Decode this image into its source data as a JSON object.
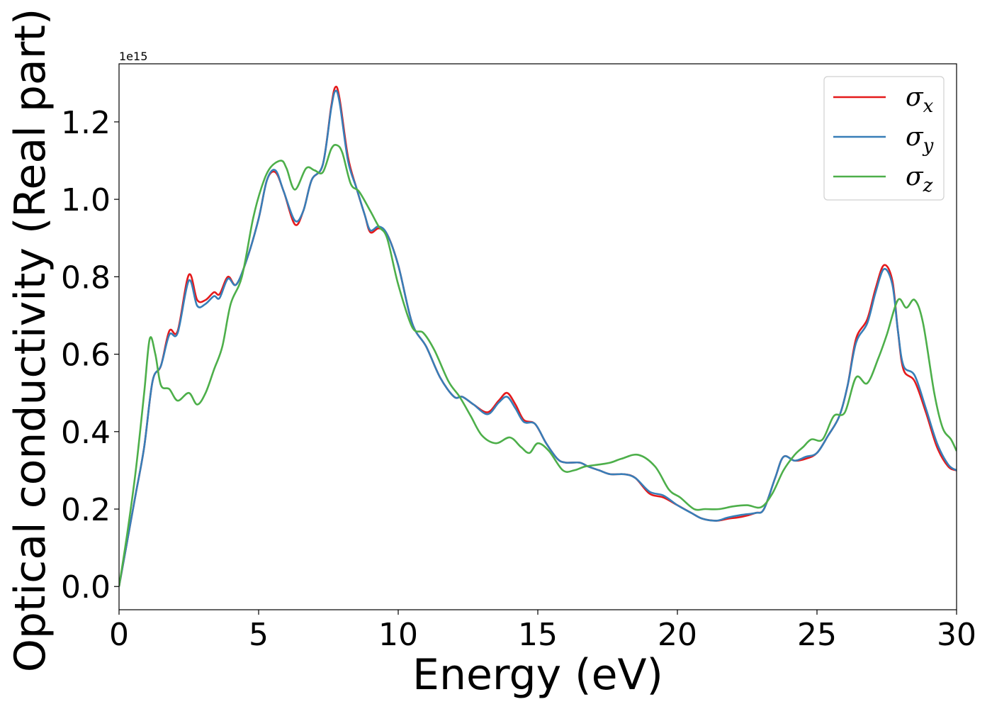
{
  "chart_data": {
    "type": "line",
    "xlabel": "Energy (eV)",
    "ylabel": "Optical conductivity (Real part)",
    "y_offset_label": "1e15",
    "xlim": [
      0,
      30
    ],
    "ylim": [
      -0.06,
      1.35
    ],
    "x_ticks": [
      0,
      5,
      10,
      15,
      20,
      25,
      30
    ],
    "x_tick_labels": [
      "0",
      "5",
      "10",
      "15",
      "20",
      "25",
      "30"
    ],
    "y_ticks": [
      0.0,
      0.2,
      0.4,
      0.6,
      0.8,
      1.0,
      1.2
    ],
    "y_tick_labels": [
      "0.0",
      "0.2",
      "0.4",
      "0.6",
      "0.8",
      "1.0",
      "1.2"
    ],
    "grid": false,
    "legend_position": "top-right",
    "series": [
      {
        "name": "σ",
        "subscript": "x",
        "color": "#e41a1c",
        "points": [
          [
            0,
            0
          ],
          [
            0.3,
            0.12
          ],
          [
            0.6,
            0.24
          ],
          [
            0.9,
            0.36
          ],
          [
            1.2,
            0.53
          ],
          [
            1.5,
            0.57
          ],
          [
            1.8,
            0.66
          ],
          [
            2.1,
            0.66
          ],
          [
            2.5,
            0.805
          ],
          [
            2.8,
            0.74
          ],
          [
            3.1,
            0.74
          ],
          [
            3.4,
            0.76
          ],
          [
            3.6,
            0.755
          ],
          [
            3.9,
            0.8
          ],
          [
            4.2,
            0.78
          ],
          [
            4.6,
            0.85
          ],
          [
            5.0,
            0.95
          ],
          [
            5.3,
            1.05
          ],
          [
            5.6,
            1.07
          ],
          [
            5.9,
            1.02
          ],
          [
            6.3,
            0.935
          ],
          [
            6.6,
            0.97
          ],
          [
            6.9,
            1.05
          ],
          [
            7.3,
            1.09
          ],
          [
            7.6,
            1.24
          ],
          [
            7.75,
            1.29
          ],
          [
            7.9,
            1.26
          ],
          [
            8.2,
            1.11
          ],
          [
            8.5,
            1.03
          ],
          [
            8.8,
            0.96
          ],
          [
            9.0,
            0.915
          ],
          [
            9.3,
            0.925
          ],
          [
            9.6,
            0.91
          ],
          [
            10.0,
            0.83
          ],
          [
            10.5,
            0.68
          ],
          [
            11.0,
            0.62
          ],
          [
            11.5,
            0.54
          ],
          [
            12.0,
            0.49
          ],
          [
            12.3,
            0.49
          ],
          [
            12.7,
            0.47
          ],
          [
            13.2,
            0.45
          ],
          [
            13.6,
            0.48
          ],
          [
            13.9,
            0.5
          ],
          [
            14.2,
            0.47
          ],
          [
            14.5,
            0.43
          ],
          [
            14.9,
            0.42
          ],
          [
            15.3,
            0.37
          ],
          [
            15.7,
            0.33
          ],
          [
            16.0,
            0.32
          ],
          [
            16.5,
            0.32
          ],
          [
            16.8,
            0.31
          ],
          [
            17.2,
            0.3
          ],
          [
            17.6,
            0.29
          ],
          [
            18.1,
            0.29
          ],
          [
            18.5,
            0.28
          ],
          [
            19.0,
            0.24
          ],
          [
            19.5,
            0.23
          ],
          [
            20.0,
            0.21
          ],
          [
            20.5,
            0.19
          ],
          [
            20.9,
            0.175
          ],
          [
            21.4,
            0.17
          ],
          [
            21.8,
            0.175
          ],
          [
            22.3,
            0.18
          ],
          [
            22.8,
            0.19
          ],
          [
            23.1,
            0.2
          ],
          [
            23.5,
            0.28
          ],
          [
            23.8,
            0.335
          ],
          [
            24.2,
            0.325
          ],
          [
            24.6,
            0.33
          ],
          [
            25.0,
            0.345
          ],
          [
            25.4,
            0.39
          ],
          [
            25.8,
            0.44
          ],
          [
            26.1,
            0.52
          ],
          [
            26.4,
            0.64
          ],
          [
            26.8,
            0.69
          ],
          [
            27.1,
            0.77
          ],
          [
            27.4,
            0.83
          ],
          [
            27.7,
            0.79
          ],
          [
            27.9,
            0.66
          ],
          [
            28.1,
            0.56
          ],
          [
            28.5,
            0.53
          ],
          [
            28.9,
            0.45
          ],
          [
            29.3,
            0.36
          ],
          [
            29.7,
            0.31
          ],
          [
            30.0,
            0.3
          ]
        ]
      },
      {
        "name": "σ",
        "subscript": "y",
        "color": "#377eb8",
        "points": [
          [
            0,
            0
          ],
          [
            0.3,
            0.12
          ],
          [
            0.6,
            0.24
          ],
          [
            0.9,
            0.36
          ],
          [
            1.2,
            0.53
          ],
          [
            1.5,
            0.57
          ],
          [
            1.8,
            0.65
          ],
          [
            2.1,
            0.655
          ],
          [
            2.5,
            0.79
          ],
          [
            2.8,
            0.725
          ],
          [
            3.1,
            0.73
          ],
          [
            3.4,
            0.75
          ],
          [
            3.6,
            0.745
          ],
          [
            3.9,
            0.795
          ],
          [
            4.2,
            0.78
          ],
          [
            4.6,
            0.85
          ],
          [
            5.0,
            0.95
          ],
          [
            5.3,
            1.05
          ],
          [
            5.6,
            1.075
          ],
          [
            5.9,
            1.02
          ],
          [
            6.3,
            0.945
          ],
          [
            6.6,
            0.97
          ],
          [
            6.9,
            1.05
          ],
          [
            7.3,
            1.09
          ],
          [
            7.6,
            1.235
          ],
          [
            7.75,
            1.28
          ],
          [
            7.9,
            1.25
          ],
          [
            8.2,
            1.1
          ],
          [
            8.5,
            1.03
          ],
          [
            8.8,
            0.96
          ],
          [
            9.0,
            0.92
          ],
          [
            9.3,
            0.93
          ],
          [
            9.6,
            0.91
          ],
          [
            10.0,
            0.83
          ],
          [
            10.5,
            0.68
          ],
          [
            11.0,
            0.62
          ],
          [
            11.5,
            0.54
          ],
          [
            12.0,
            0.49
          ],
          [
            12.3,
            0.49
          ],
          [
            12.7,
            0.47
          ],
          [
            13.2,
            0.445
          ],
          [
            13.6,
            0.475
          ],
          [
            13.9,
            0.49
          ],
          [
            14.2,
            0.46
          ],
          [
            14.5,
            0.425
          ],
          [
            14.9,
            0.42
          ],
          [
            15.3,
            0.37
          ],
          [
            15.7,
            0.33
          ],
          [
            16.0,
            0.32
          ],
          [
            16.5,
            0.32
          ],
          [
            16.8,
            0.31
          ],
          [
            17.2,
            0.3
          ],
          [
            17.6,
            0.29
          ],
          [
            18.1,
            0.29
          ],
          [
            18.5,
            0.28
          ],
          [
            19.0,
            0.245
          ],
          [
            19.5,
            0.235
          ],
          [
            20.0,
            0.21
          ],
          [
            20.5,
            0.19
          ],
          [
            20.9,
            0.175
          ],
          [
            21.4,
            0.17
          ],
          [
            21.8,
            0.178
          ],
          [
            22.3,
            0.185
          ],
          [
            22.8,
            0.19
          ],
          [
            23.1,
            0.2
          ],
          [
            23.5,
            0.28
          ],
          [
            23.8,
            0.335
          ],
          [
            24.2,
            0.325
          ],
          [
            24.6,
            0.335
          ],
          [
            25.0,
            0.345
          ],
          [
            25.4,
            0.39
          ],
          [
            25.8,
            0.44
          ],
          [
            26.1,
            0.52
          ],
          [
            26.4,
            0.63
          ],
          [
            26.8,
            0.68
          ],
          [
            27.1,
            0.76
          ],
          [
            27.4,
            0.82
          ],
          [
            27.7,
            0.78
          ],
          [
            27.9,
            0.66
          ],
          [
            28.1,
            0.57
          ],
          [
            28.5,
            0.545
          ],
          [
            28.9,
            0.46
          ],
          [
            29.3,
            0.37
          ],
          [
            29.7,
            0.315
          ],
          [
            30.0,
            0.3
          ]
        ]
      },
      {
        "name": "σ",
        "subscript": "z",
        "color": "#4daf4a",
        "points": [
          [
            0,
            0
          ],
          [
            0.3,
            0.14
          ],
          [
            0.6,
            0.3
          ],
          [
            0.9,
            0.5
          ],
          [
            1.1,
            0.64
          ],
          [
            1.3,
            0.6
          ],
          [
            1.5,
            0.52
          ],
          [
            1.8,
            0.51
          ],
          [
            2.1,
            0.48
          ],
          [
            2.5,
            0.5
          ],
          [
            2.8,
            0.47
          ],
          [
            3.1,
            0.5
          ],
          [
            3.4,
            0.56
          ],
          [
            3.7,
            0.62
          ],
          [
            4.0,
            0.73
          ],
          [
            4.4,
            0.8
          ],
          [
            4.8,
            0.95
          ],
          [
            5.1,
            1.03
          ],
          [
            5.4,
            1.08
          ],
          [
            5.8,
            1.1
          ],
          [
            6.0,
            1.08
          ],
          [
            6.3,
            1.025
          ],
          [
            6.7,
            1.08
          ],
          [
            7.0,
            1.075
          ],
          [
            7.3,
            1.07
          ],
          [
            7.6,
            1.13
          ],
          [
            7.8,
            1.14
          ],
          [
            8.0,
            1.12
          ],
          [
            8.3,
            1.04
          ],
          [
            8.6,
            1.02
          ],
          [
            9.0,
            0.97
          ],
          [
            9.3,
            0.93
          ],
          [
            9.6,
            0.9
          ],
          [
            10.0,
            0.78
          ],
          [
            10.5,
            0.67
          ],
          [
            10.9,
            0.655
          ],
          [
            11.3,
            0.61
          ],
          [
            11.8,
            0.53
          ],
          [
            12.2,
            0.49
          ],
          [
            12.6,
            0.44
          ],
          [
            13.0,
            0.39
          ],
          [
            13.5,
            0.37
          ],
          [
            14.0,
            0.385
          ],
          [
            14.4,
            0.36
          ],
          [
            14.7,
            0.345
          ],
          [
            15.0,
            0.37
          ],
          [
            15.4,
            0.35
          ],
          [
            15.9,
            0.3
          ],
          [
            16.3,
            0.3
          ],
          [
            16.7,
            0.31
          ],
          [
            17.2,
            0.315
          ],
          [
            17.6,
            0.32
          ],
          [
            18.0,
            0.33
          ],
          [
            18.6,
            0.34
          ],
          [
            19.2,
            0.31
          ],
          [
            19.7,
            0.25
          ],
          [
            20.1,
            0.23
          ],
          [
            20.6,
            0.2
          ],
          [
            21.0,
            0.2
          ],
          [
            21.5,
            0.2
          ],
          [
            22.0,
            0.207
          ],
          [
            22.5,
            0.21
          ],
          [
            23.0,
            0.205
          ],
          [
            23.4,
            0.24
          ],
          [
            23.8,
            0.3
          ],
          [
            24.2,
            0.34
          ],
          [
            24.5,
            0.36
          ],
          [
            24.8,
            0.38
          ],
          [
            25.2,
            0.38
          ],
          [
            25.6,
            0.44
          ],
          [
            26.0,
            0.45
          ],
          [
            26.4,
            0.54
          ],
          [
            26.8,
            0.525
          ],
          [
            27.2,
            0.59
          ],
          [
            27.5,
            0.65
          ],
          [
            27.9,
            0.74
          ],
          [
            28.2,
            0.72
          ],
          [
            28.5,
            0.74
          ],
          [
            28.8,
            0.68
          ],
          [
            29.2,
            0.5
          ],
          [
            29.5,
            0.41
          ],
          [
            29.8,
            0.38
          ],
          [
            30.0,
            0.35
          ]
        ]
      }
    ]
  }
}
